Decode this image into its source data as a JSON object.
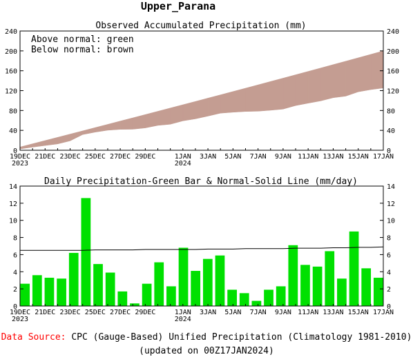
{
  "header": {
    "title": "Upper_Parana"
  },
  "footer": {
    "source_label": "Data Source:",
    "source_text": "CPC (Gauge-Based) Unified Precipitation (Climatology 1981-2010)",
    "updated": "(updated on 00Z17JAN2024)"
  },
  "colors": {
    "band": "#c49d92",
    "bars": "#00e000",
    "normal_line": "#000000",
    "source_label": "#ff0000"
  },
  "chart_data": [
    {
      "type": "area",
      "title": "Observed Accumulated Precipitation (mm)",
      "annotations": [
        "Above normal: green",
        "Below normal: brown"
      ],
      "ylim": [
        0,
        240
      ],
      "yticks": [
        0,
        40,
        80,
        120,
        160,
        200,
        240
      ],
      "xlim": [
        0,
        29
      ],
      "xticks": [
        {
          "x": 0,
          "label": "19DEC",
          "sub": "2023"
        },
        {
          "x": 2,
          "label": "21DEC"
        },
        {
          "x": 4,
          "label": "23DEC"
        },
        {
          "x": 6,
          "label": "25DEC"
        },
        {
          "x": 8,
          "label": "27DEC"
        },
        {
          "x": 10,
          "label": "29DEC"
        },
        {
          "x": 13,
          "label": "1JAN",
          "sub": "2024"
        },
        {
          "x": 15,
          "label": "3JAN"
        },
        {
          "x": 17,
          "label": "5JAN"
        },
        {
          "x": 19,
          "label": "7JAN"
        },
        {
          "x": 21,
          "label": "9JAN"
        },
        {
          "x": 23,
          "label": "11JAN"
        },
        {
          "x": 25,
          "label": "13JAN"
        },
        {
          "x": 27,
          "label": "15JAN"
        },
        {
          "x": 29,
          "label": "17JAN"
        }
      ],
      "series": [
        {
          "role": "observed",
          "values": [
            2.6,
            6.2,
            9.5,
            12.7,
            18.9,
            31.5,
            36.4,
            40.3,
            42.0,
            42.3,
            44.9,
            50.0,
            52.3,
            59.1,
            63.2,
            68.7,
            74.6,
            76.5,
            78.0,
            78.6,
            80.5,
            82.8,
            89.9,
            94.7,
            99.3,
            105.7,
            108.9,
            117.6,
            122.0,
            125.3
          ]
        },
        {
          "role": "normal",
          "values": [
            6.5,
            13.0,
            19.5,
            26.0,
            32.5,
            39.0,
            45.6,
            52.1,
            58.7,
            65.2,
            71.8,
            78.4,
            85.0,
            91.6,
            98.2,
            104.9,
            111.5,
            118.2,
            124.9,
            131.6,
            138.4,
            145.1,
            151.9,
            158.7,
            165.5,
            172.4,
            179.2,
            186.1,
            193.0,
            200.0
          ]
        }
      ]
    },
    {
      "type": "bar",
      "title": "Daily Precipitation-Green Bar & Normal-Solid Line (mm/day)",
      "ylim": [
        0,
        14
      ],
      "yticks": [
        0,
        2,
        4,
        6,
        8,
        10,
        12,
        14
      ],
      "xlim": [
        0,
        29
      ],
      "series": [
        {
          "role": "daily",
          "values": [
            2.6,
            3.6,
            3.3,
            3.2,
            6.2,
            12.6,
            4.9,
            3.9,
            1.7,
            0.3,
            2.6,
            5.1,
            2.3,
            6.8,
            4.1,
            5.5,
            5.9,
            1.9,
            1.5,
            0.6,
            1.9,
            2.3,
            7.1,
            4.8,
            4.6,
            6.4,
            3.2,
            8.7,
            4.4,
            3.3
          ]
        },
        {
          "role": "normal",
          "values": [
            6.5,
            6.5,
            6.5,
            6.5,
            6.5,
            6.5,
            6.55,
            6.55,
            6.55,
            6.55,
            6.6,
            6.6,
            6.6,
            6.6,
            6.6,
            6.65,
            6.65,
            6.65,
            6.7,
            6.7,
            6.7,
            6.7,
            6.75,
            6.75,
            6.75,
            6.8,
            6.8,
            6.85,
            6.85,
            6.9
          ]
        }
      ]
    }
  ]
}
